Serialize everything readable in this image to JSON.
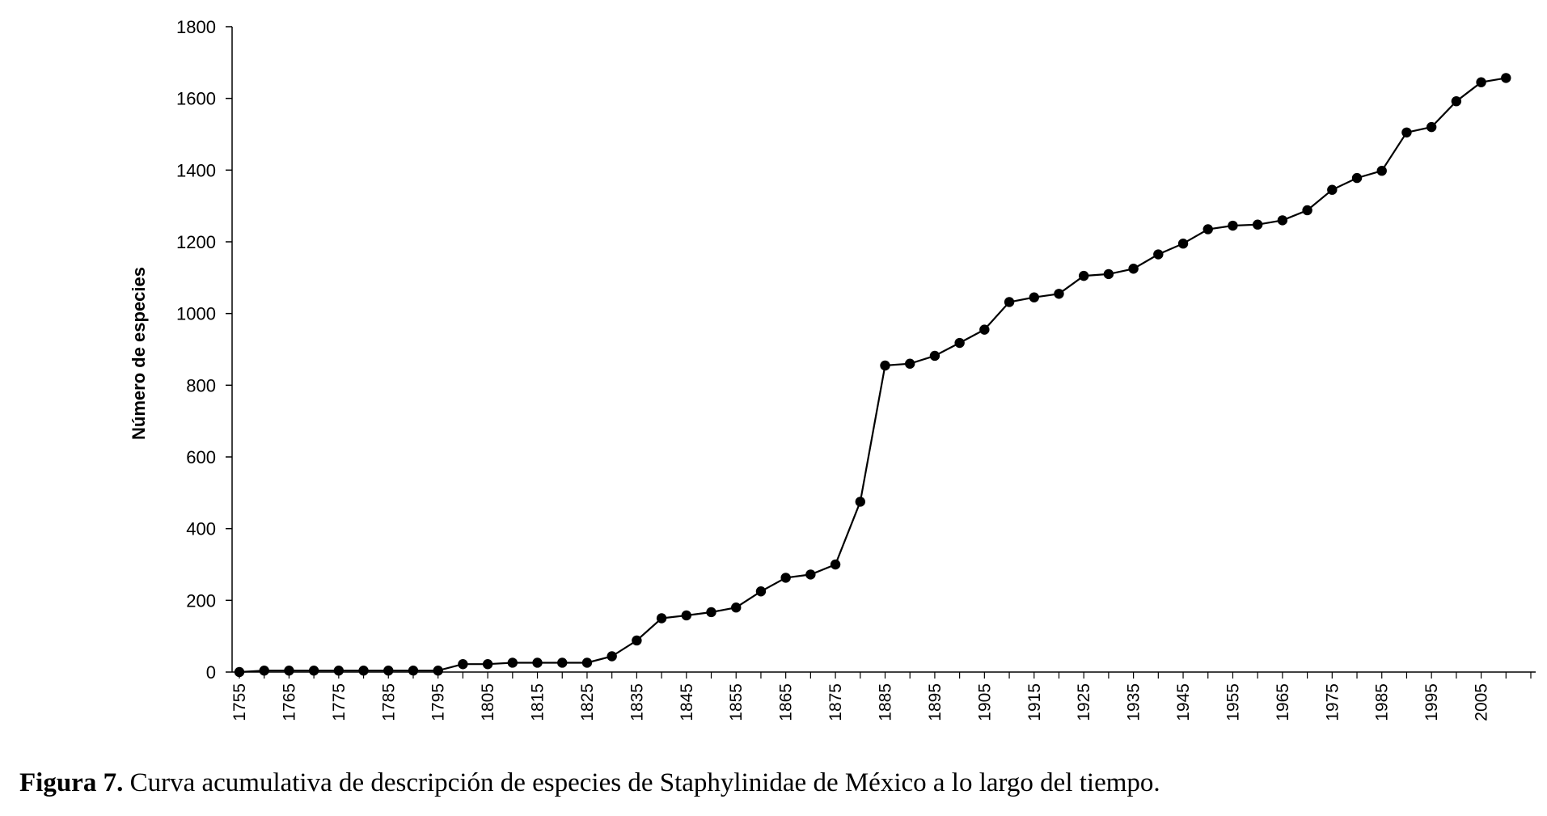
{
  "caption": {
    "label": "Figura 7.",
    "text": " Curva acumulativa de descripción de especies de Staphylinidae de México a lo largo del tiempo."
  },
  "chart_data": {
    "type": "line",
    "title": "",
    "xlabel": "",
    "ylabel": "Número de especies",
    "ylim": [
      0,
      1800
    ],
    "yticks": [
      0,
      200,
      400,
      600,
      800,
      1000,
      1200,
      1400,
      1600,
      1800
    ],
    "xtick_labels": [
      "1755",
      "1765",
      "1775",
      "1785",
      "1795",
      "1805",
      "1815",
      "1825",
      "1835",
      "1845",
      "1855",
      "1865",
      "1875",
      "1885",
      "1895",
      "1905",
      "1915",
      "1925",
      "1935",
      "1945",
      "1955",
      "1965",
      "1975",
      "1985",
      "1995",
      "2005"
    ],
    "grid": false,
    "legend": "none",
    "series": [
      {
        "color": "#000000",
        "x": [
          1755,
          1760,
          1765,
          1770,
          1775,
          1780,
          1785,
          1790,
          1795,
          1800,
          1805,
          1810,
          1815,
          1820,
          1825,
          1830,
          1835,
          1840,
          1845,
          1850,
          1855,
          1860,
          1865,
          1870,
          1875,
          1880,
          1885,
          1890,
          1895,
          1900,
          1905,
          1910,
          1915,
          1920,
          1925,
          1930,
          1935,
          1940,
          1945,
          1950,
          1955,
          1960,
          1965,
          1970,
          1975,
          1980,
          1985,
          1990,
          1995,
          2000,
          2005,
          2010
        ],
        "values": [
          0,
          4,
          4,
          4,
          4,
          4,
          4,
          4,
          4,
          22,
          22,
          26,
          26,
          26,
          26,
          44,
          88,
          150,
          158,
          167,
          180,
          225,
          263,
          272,
          300,
          475,
          855,
          860,
          882,
          918,
          955,
          1032,
          1045,
          1055,
          1105,
          1110,
          1125,
          1165,
          1195,
          1235,
          1245,
          1248,
          1260,
          1288,
          1345,
          1378,
          1398,
          1505,
          1520,
          1592,
          1645,
          1657
        ]
      }
    ]
  }
}
